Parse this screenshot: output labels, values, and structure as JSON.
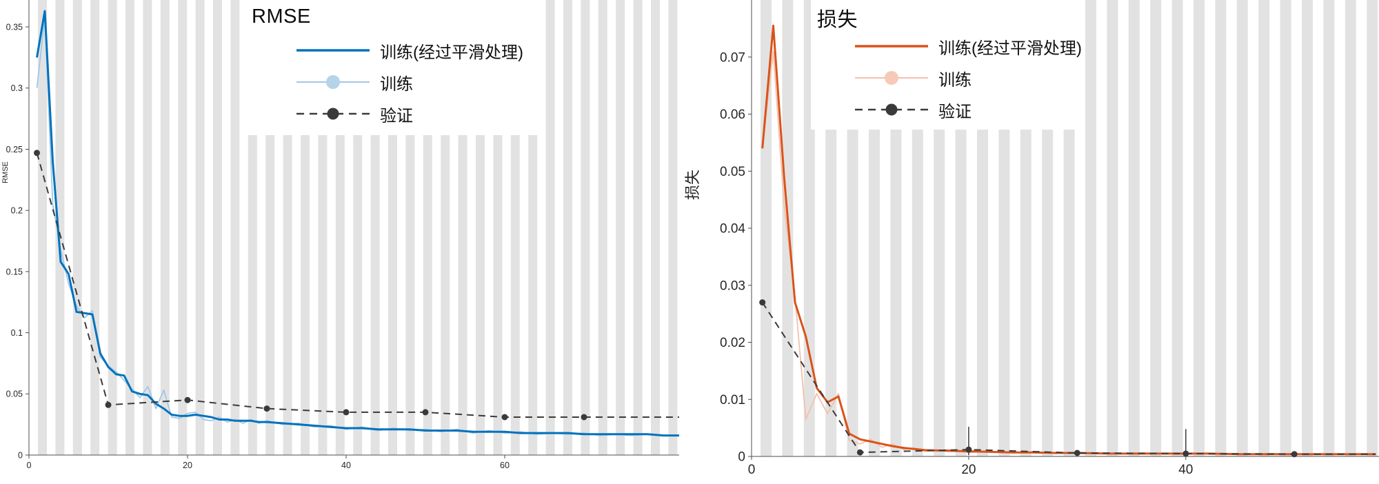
{
  "theme": {
    "background": "#ffffff",
    "stripe": "#e2e2e2",
    "axis": "#4d4d4d",
    "tick_text": "#262626"
  },
  "chart_data": [
    {
      "type": "line",
      "title": "RMSE",
      "ylabel": "RMSE",
      "xlim": [
        0,
        82
      ],
      "ylim": [
        0,
        0.372
      ],
      "xticks": [
        "0",
        "20",
        "40",
        "60"
      ],
      "yticks": [
        "0",
        "0.05",
        "0.1",
        "0.15",
        "0.2",
        "0.25",
        "0.3",
        "0.35"
      ],
      "grid": "vertical-epoch-stripes",
      "legend_position": "top-right",
      "legend": [
        "训练(经过平滑处理)",
        "训练",
        "验证"
      ],
      "colors": {
        "smoothed": "#0072BD",
        "raw": "#a0c8e6",
        "raw_marker": "#b5d3e9",
        "validation": "#3a3a3a"
      },
      "series": {
        "smoothed": {
          "name": "训练(经过平滑处理)",
          "x": [
            1,
            2,
            3,
            4,
            5,
            6,
            7,
            8,
            9,
            10,
            11,
            12,
            13,
            14,
            15,
            16,
            17,
            18,
            19,
            20,
            21,
            22,
            23,
            24,
            25,
            26,
            27,
            28,
            29,
            30,
            32,
            34,
            36,
            38,
            40,
            42,
            44,
            46,
            48,
            50,
            52,
            54,
            56,
            58,
            60,
            62,
            64,
            66,
            68,
            70,
            72,
            74,
            76,
            78,
            80,
            82
          ],
          "y": [
            0.325,
            0.363,
            0.24,
            0.158,
            0.148,
            0.117,
            0.116,
            0.115,
            0.083,
            0.072,
            0.066,
            0.065,
            0.052,
            0.05,
            0.049,
            0.042,
            0.038,
            0.033,
            0.032,
            0.032,
            0.033,
            0.032,
            0.031,
            0.029,
            0.029,
            0.028,
            0.028,
            0.028,
            0.027,
            0.027,
            0.026,
            0.025,
            0.024,
            0.023,
            0.022,
            0.022,
            0.021,
            0.021,
            0.021,
            0.02,
            0.02,
            0.02,
            0.019,
            0.019,
            0.019,
            0.018,
            0.018,
            0.018,
            0.018,
            0.017,
            0.017,
            0.017,
            0.017,
            0.017,
            0.016,
            0.016
          ]
        },
        "raw": {
          "name": "训练",
          "x": [
            1,
            2,
            3,
            4,
            5,
            6,
            7,
            8,
            9,
            10,
            11,
            12,
            13,
            14,
            15,
            16,
            17,
            18,
            19,
            20,
            21,
            22,
            23,
            24,
            25,
            26,
            27,
            28,
            29,
            30,
            32,
            34,
            36,
            38,
            40,
            42,
            44,
            46,
            48,
            50,
            52,
            54,
            56,
            58,
            60,
            62,
            64,
            66,
            68,
            70,
            72,
            74,
            76,
            78,
            80,
            82
          ],
          "y": [
            0.3,
            0.358,
            0.205,
            0.168,
            0.14,
            0.122,
            0.112,
            0.118,
            0.08,
            0.073,
            0.068,
            0.061,
            0.054,
            0.047,
            0.056,
            0.038,
            0.053,
            0.031,
            0.03,
            0.034,
            0.035,
            0.029,
            0.028,
            0.031,
            0.027,
            0.029,
            0.026,
            0.029,
            0.026,
            0.028,
            0.025,
            0.026,
            0.023,
            0.024,
            0.021,
            0.023,
            0.02,
            0.022,
            0.02,
            0.021,
            0.019,
            0.021,
            0.018,
            0.02,
            0.018,
            0.019,
            0.017,
            0.018,
            0.017,
            0.018,
            0.016,
            0.017,
            0.016,
            0.017,
            0.016,
            0.016
          ]
        },
        "validation": {
          "name": "验证",
          "x": [
            1,
            10,
            20,
            30,
            40,
            50,
            60,
            70,
            82
          ],
          "y": [
            0.247,
            0.041,
            0.045,
            0.038,
            0.035,
            0.035,
            0.031,
            0.031,
            0.031
          ],
          "marker_x": [
            1,
            10,
            20,
            30,
            40,
            50,
            60,
            70
          ],
          "marker_y": [
            0.247,
            0.041,
            0.045,
            0.038,
            0.035,
            0.035,
            0.031,
            0.031
          ],
          "error_bars": []
        }
      }
    },
    {
      "type": "line",
      "title": "损失",
      "ylabel": "损失",
      "xlim": [
        0,
        57.8
      ],
      "ylim": [
        0,
        0.08
      ],
      "xticks": [
        "0",
        "20",
        "40"
      ],
      "yticks": [
        "0",
        "0.01",
        "0.02",
        "0.03",
        "0.04",
        "0.05",
        "0.06",
        "0.07"
      ],
      "grid": "vertical-epoch-stripes",
      "legend_position": "top-right",
      "legend": [
        "训练(经过平滑处理)",
        "训练",
        "验证"
      ],
      "colors": {
        "smoothed": "#D95319",
        "raw": "#f2c1ab",
        "raw_marker": "#f6cab6",
        "validation": "#3a3a3a"
      },
      "series": {
        "smoothed": {
          "name": "训练(经过平滑处理)",
          "x": [
            1,
            2,
            3,
            4,
            5,
            6,
            7,
            8,
            9,
            10,
            11,
            12,
            13,
            14,
            15,
            16,
            18,
            20,
            22,
            24,
            26,
            28,
            30,
            33,
            36,
            39,
            42,
            45,
            48,
            51,
            54,
            57.5
          ],
          "y": [
            0.054,
            0.0755,
            0.049,
            0.027,
            0.021,
            0.012,
            0.0095,
            0.0105,
            0.004,
            0.003,
            0.0026,
            0.0022,
            0.0018,
            0.0015,
            0.0013,
            0.0011,
            0.001,
            0.0009,
            0.0008,
            0.0007,
            0.0007,
            0.0006,
            0.0006,
            0.0005,
            0.0005,
            0.0005,
            0.0005,
            0.0004,
            0.0004,
            0.0004,
            0.0004,
            0.0004
          ]
        },
        "raw": {
          "name": "训练",
          "x": [
            1,
            2,
            3,
            4,
            5,
            6,
            7,
            8,
            9,
            10,
            11,
            12,
            13,
            14,
            15,
            16,
            18,
            20,
            22,
            24,
            26,
            28,
            30,
            33,
            36,
            39,
            42,
            45,
            48,
            51,
            54,
            57.5
          ],
          "y": [
            0.054,
            0.071,
            0.044,
            0.028,
            0.0065,
            0.011,
            0.0075,
            0.011,
            0.0028,
            0.0022,
            0.003,
            0.0016,
            0.0022,
            0.0012,
            0.0015,
            0.0009,
            0.0012,
            0.0007,
            0.0009,
            0.0006,
            0.0008,
            0.0005,
            0.0007,
            0.0005,
            0.0006,
            0.0004,
            0.0005,
            0.0004,
            0.0005,
            0.0003,
            0.0004,
            0.0004
          ]
        },
        "validation": {
          "name": "验证",
          "x": [
            1,
            10,
            20,
            30,
            40,
            50,
            57.5
          ],
          "y": [
            0.027,
            0.0007,
            0.0012,
            0.0006,
            0.0005,
            0.0004,
            0.0004
          ],
          "marker_x": [
            1,
            10,
            20,
            30,
            40,
            50
          ],
          "marker_y": [
            0.027,
            0.0007,
            0.0012,
            0.0006,
            0.0005,
            0.0004
          ],
          "error_bars": [
            {
              "x": 20,
              "lo": 0.0002,
              "hi": 0.0052
            },
            {
              "x": 40,
              "lo": 0.0002,
              "hi": 0.0048
            }
          ]
        }
      }
    }
  ]
}
